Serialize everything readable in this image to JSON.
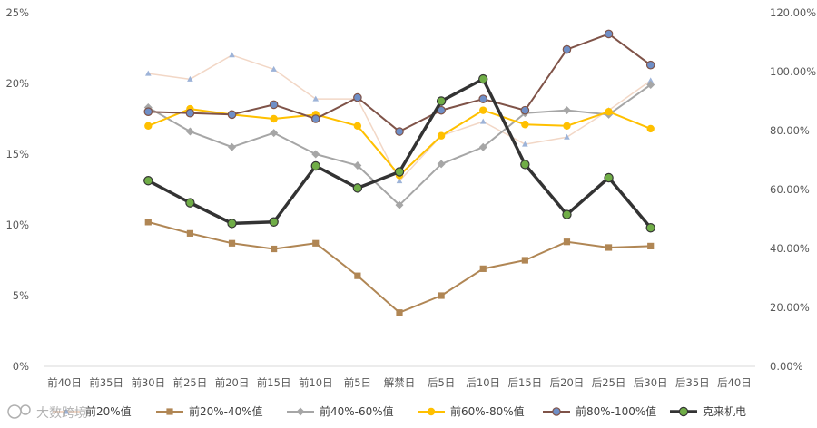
{
  "chart_data": {
    "type": "line",
    "categories": [
      "前40日",
      "前35日",
      "前30日",
      "前25日",
      "前20日",
      "前15日",
      "前10日",
      "前5日",
      "解禁日",
      "后5日",
      "后10日",
      "后15日",
      "后20日",
      "后25日",
      "后30日",
      "后35日",
      "后40日"
    ],
    "y_left": {
      "ticks": [
        "0%",
        "5%",
        "10%",
        "15%",
        "20%",
        "25%"
      ],
      "ylim": [
        0,
        25
      ]
    },
    "y_right": {
      "ticks": [
        "0.00%",
        "20.00%",
        "40.00%",
        "60.00%",
        "80.00%",
        "100.00%",
        "120.00%"
      ],
      "ylim": [
        0,
        120
      ]
    },
    "grid": false,
    "legend_position": "bottom",
    "series": [
      {
        "name": "前20%值",
        "axis": "left",
        "color": "#f2d7c6",
        "marker": "triangle",
        "values": [
          null,
          null,
          20.7,
          20.3,
          22.0,
          21.0,
          18.9,
          18.9,
          13.1,
          16.3,
          17.3,
          15.7,
          16.2,
          18.1,
          20.2,
          null,
          null
        ]
      },
      {
        "name": "前20%-40%值",
        "axis": "left",
        "color": "#b08654",
        "marker": "square",
        "values": [
          null,
          null,
          10.2,
          9.4,
          8.7,
          8.3,
          8.7,
          6.4,
          3.8,
          5.0,
          6.9,
          7.5,
          8.8,
          8.4,
          8.5,
          null,
          null
        ]
      },
      {
        "name": "前40%-60%值",
        "axis": "left",
        "color": "#a6a6a6",
        "marker": "diamond",
        "values": [
          null,
          null,
          18.3,
          16.6,
          15.5,
          16.5,
          15.0,
          14.2,
          11.4,
          14.3,
          15.5,
          17.9,
          18.1,
          17.8,
          19.9,
          null,
          null
        ]
      },
      {
        "name": "前60%-80%值",
        "axis": "left",
        "color": "#ffc000",
        "marker": "circle",
        "values": [
          null,
          null,
          17.0,
          18.2,
          17.8,
          17.5,
          17.8,
          17.0,
          13.5,
          16.3,
          18.1,
          17.1,
          17.0,
          18.0,
          16.8,
          null,
          null
        ]
      },
      {
        "name": "前80%-100%值",
        "axis": "left",
        "color": "#7f5348",
        "marker": "circle",
        "marker_fill": "#6f8fc7",
        "values": [
          null,
          null,
          18.0,
          17.9,
          17.8,
          18.5,
          17.5,
          19.0,
          16.6,
          18.1,
          18.9,
          18.1,
          22.4,
          23.5,
          21.3,
          null,
          null
        ]
      },
      {
        "name": "克来机电",
        "axis": "right",
        "color": "#333333",
        "marker": "circle",
        "marker_fill": "#70ad47",
        "values": [
          null,
          null,
          63.0,
          55.5,
          48.5,
          49.0,
          68.0,
          60.5,
          66.0,
          90.0,
          97.5,
          68.5,
          51.5,
          64.0,
          47.0,
          null,
          null
        ]
      }
    ]
  },
  "watermark": {
    "text": "大数跨境"
  }
}
